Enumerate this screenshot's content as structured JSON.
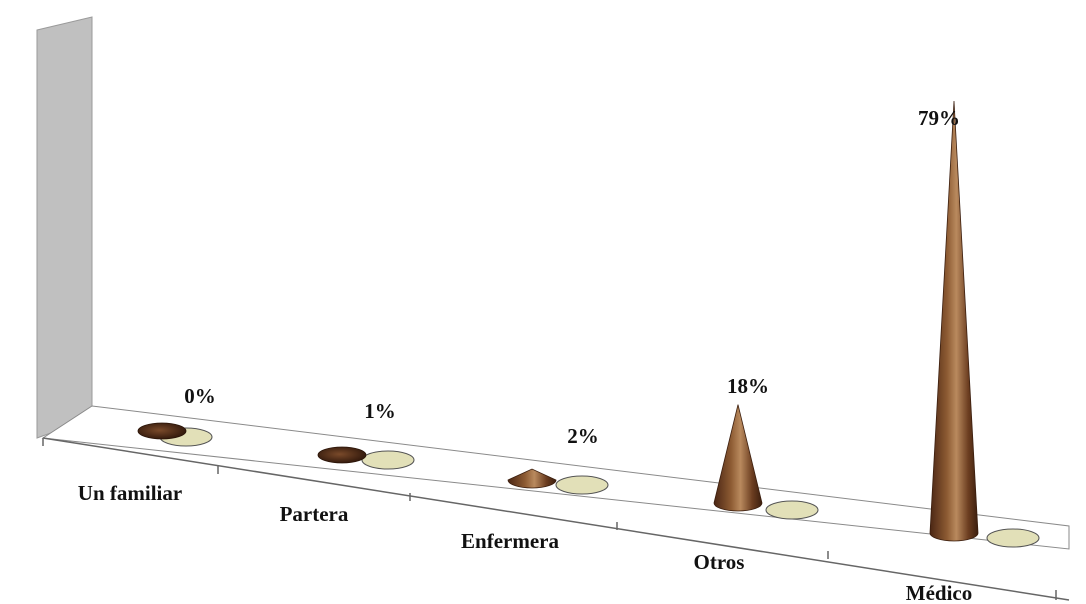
{
  "chart_data": {
    "type": "bar",
    "shape": "3d-cone",
    "title": "",
    "xlabel": "",
    "ylabel": "",
    "categories": [
      "Un familiar",
      "Partera",
      "Enfermera",
      "Otros",
      "Médico"
    ],
    "values": [
      0,
      1,
      2,
      18,
      79
    ],
    "data_labels": [
      "0%",
      "1%",
      "2%",
      "18%",
      "79%"
    ],
    "unit": "%",
    "ylim": [
      0,
      79
    ],
    "grid": false,
    "legend": "none",
    "colors": {
      "cone_dark": "#4a2614",
      "cone_mid": "#8c5a32",
      "cone_light": "#b98a5e",
      "shadow_fill": "#e2e0b8",
      "back_wall": "#c0c0c0",
      "floor_edge": "#888888"
    }
  }
}
